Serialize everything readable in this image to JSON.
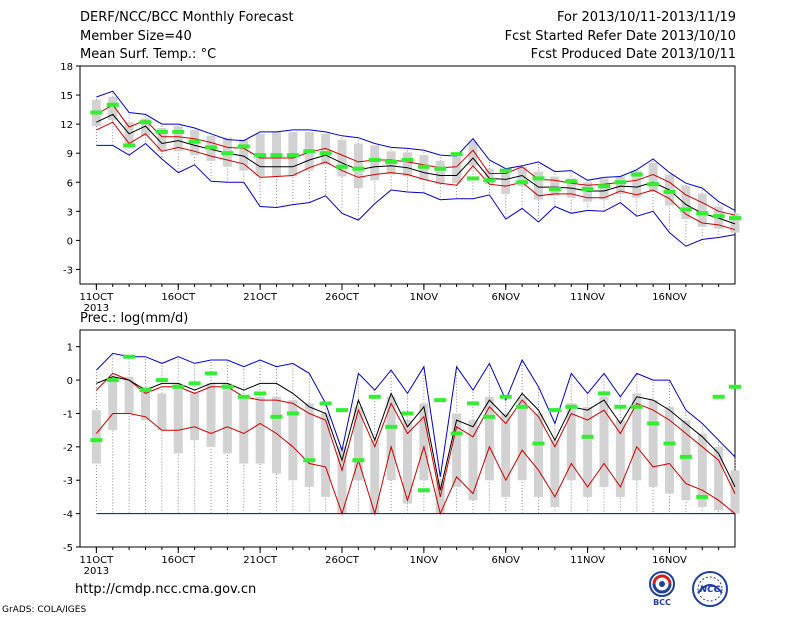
{
  "header": {
    "title": "DERF/NCC/BCC Monthly Forecast",
    "member_size": "Member Size=40",
    "variable": "Mean Surf. Temp.: °C",
    "period": "For 2013/10/11-2013/11/19",
    "fcst_started": "Fcst Started Refer Date 2013/10/10",
    "fcst_produced": "Fcst Produced Date 2013/10/11"
  },
  "footer": {
    "url": "http://cmdp.ncc.cma.gov.cn",
    "credit": "GrADS: COLA/IGES",
    "logo_bcc": "BCC",
    "logo_ncc": "NCC"
  },
  "colors": {
    "outer": "#0000cc",
    "inner": "#cc0000",
    "mean": "#000000",
    "obs": "#33ee33",
    "box": "#d2d2d2",
    "whisker": "#8c8c8c"
  },
  "chart_data": [
    {
      "type": "line",
      "title": "",
      "ylabel": "Mean Surf. Temp.: °C",
      "x_tick_labels": [
        "11OCT\n2013",
        "16OCT",
        "21OCT",
        "26OCT",
        "1NOV",
        "6NOV",
        "11NOV",
        "16NOV"
      ],
      "x_tick_days": [
        1,
        6,
        11,
        16,
        21,
        26,
        31,
        36
      ],
      "y_ticks": [
        -3,
        0,
        3,
        6,
        9,
        12,
        15,
        18
      ],
      "ylim": [
        -4.5,
        18
      ],
      "xlim": [
        0,
        40
      ],
      "days": [
        1,
        2,
        3,
        4,
        5,
        6,
        7,
        8,
        9,
        10,
        11,
        12,
        13,
        14,
        15,
        16,
        17,
        18,
        19,
        20,
        21,
        22,
        23,
        24,
        25,
        26,
        27,
        28,
        29,
        30,
        31,
        32,
        33,
        34,
        35,
        36,
        37,
        38,
        39,
        40
      ],
      "series": [
        {
          "name": "",
          "role": "upper-blue",
          "values": [
            14.8,
            15.4,
            13.2,
            13.0,
            12.0,
            12.0,
            11.6,
            11.0,
            10.4,
            10.3,
            11.2,
            11.2,
            11.4,
            11.4,
            11.2,
            10.8,
            10.6,
            10.0,
            9.6,
            9.5,
            9.3,
            8.8,
            8.7,
            10.5,
            8.3,
            7.4,
            7.7,
            8.1,
            7.1,
            7.2,
            6.2,
            6.5,
            6.6,
            7.3,
            8.4,
            7.0,
            5.9,
            5.4,
            4.0,
            3.1
          ]
        },
        {
          "name": "",
          "role": "upper-red",
          "values": [
            13.0,
            14.0,
            11.7,
            12.4,
            10.7,
            10.7,
            10.5,
            10.1,
            9.6,
            9.5,
            8.5,
            8.5,
            8.5,
            9.1,
            9.5,
            8.8,
            8.1,
            8.3,
            8.3,
            8.1,
            7.8,
            7.5,
            7.6,
            9.3,
            6.9,
            6.9,
            7.6,
            6.3,
            6.2,
            5.9,
            5.7,
            5.8,
            6.0,
            6.2,
            6.8,
            6.0,
            4.7,
            3.9,
            3.0,
            2.6
          ]
        },
        {
          "name": "",
          "role": "mean",
          "values": [
            12.2,
            13.0,
            11.0,
            11.8,
            10.0,
            10.3,
            9.8,
            9.4,
            9.0,
            8.7,
            7.6,
            7.6,
            7.6,
            8.3,
            8.8,
            8.0,
            7.3,
            7.6,
            7.7,
            7.5,
            7.0,
            6.7,
            6.7,
            8.5,
            6.4,
            6.3,
            6.7,
            5.5,
            5.5,
            5.4,
            5.1,
            5.1,
            5.6,
            5.5,
            6.0,
            5.2,
            3.7,
            2.8,
            2.3,
            1.7
          ]
        },
        {
          "name": "",
          "role": "lower-red",
          "values": [
            11.4,
            12.2,
            10.0,
            11.0,
            9.2,
            9.6,
            9.2,
            8.7,
            8.3,
            7.9,
            6.5,
            6.6,
            6.7,
            7.5,
            8.1,
            7.2,
            6.5,
            6.8,
            7.0,
            6.8,
            6.3,
            5.9,
            5.7,
            7.7,
            5.8,
            5.6,
            6.0,
            4.6,
            4.8,
            4.8,
            4.4,
            4.4,
            5.1,
            4.7,
            5.2,
            4.3,
            2.7,
            1.8,
            1.6,
            1.1
          ]
        },
        {
          "name": "",
          "role": "lower-blue",
          "values": [
            9.8,
            9.8,
            8.8,
            10.0,
            8.4,
            7.0,
            7.8,
            6.1,
            6.0,
            6.0,
            3.5,
            3.4,
            3.7,
            3.9,
            4.6,
            2.8,
            2.1,
            3.8,
            5.2,
            5.0,
            4.9,
            4.2,
            4.3,
            4.3,
            4.7,
            2.2,
            3.3,
            1.9,
            3.5,
            2.8,
            3.1,
            3.0,
            3.9,
            2.5,
            3.0,
            0.8,
            -0.6,
            0.1,
            0.3,
            0.6
          ]
        }
      ],
      "boxes": [
        [
          11.8,
          14.5
        ],
        [
          12.4,
          14.8
        ],
        [
          10.0,
          12.2
        ],
        [
          10.8,
          12.6
        ],
        [
          9.2,
          11.6
        ],
        [
          9.2,
          11.8
        ],
        [
          8.8,
          11.4
        ],
        [
          8.2,
          10.8
        ],
        [
          7.6,
          10.6
        ],
        [
          7.2,
          10.4
        ],
        [
          6.6,
          11.0
        ],
        [
          6.6,
          11.2
        ],
        [
          6.6,
          11.2
        ],
        [
          7.2,
          11.2
        ],
        [
          7.8,
          11.0
        ],
        [
          6.6,
          10.4
        ],
        [
          5.4,
          10.0
        ],
        [
          6.2,
          9.8
        ],
        [
          6.8,
          9.2
        ],
        [
          6.6,
          9.1
        ],
        [
          6.2,
          8.8
        ],
        [
          5.8,
          8.2
        ],
        [
          5.9,
          8.6
        ],
        [
          7.7,
          10.2
        ],
        [
          5.8,
          7.4
        ],
        [
          4.8,
          7.0
        ],
        [
          5.6,
          7.6
        ],
        [
          4.2,
          7.1
        ],
        [
          4.6,
          6.6
        ],
        [
          4.4,
          6.4
        ],
        [
          4.0,
          6.0
        ],
        [
          4.2,
          6.4
        ],
        [
          4.8,
          6.6
        ],
        [
          4.4,
          7.2
        ],
        [
          5.0,
          8.0
        ],
        [
          3.6,
          6.8
        ],
        [
          2.2,
          5.6
        ],
        [
          1.4,
          4.8
        ],
        [
          1.2,
          3.5
        ],
        [
          0.8,
          2.8
        ]
      ],
      "observed": [
        13.2,
        14.0,
        9.8,
        12.2,
        11.2,
        11.2,
        10.2,
        9.6,
        9.0,
        9.7,
        8.8,
        8.8,
        8.8,
        9.2,
        9.0,
        7.6,
        7.4,
        8.3,
        8.1,
        8.3,
        7.6,
        7.4,
        8.9,
        6.4,
        6.2,
        7.2,
        6.0,
        6.4,
        5.3,
        6.1,
        5.3,
        5.6,
        6.0,
        6.8,
        5.8,
        5.0,
        3.2,
        2.8,
        2.5,
        2.3
      ]
    },
    {
      "type": "line",
      "title": "",
      "ylabel": "Prec.: log(mm/d)",
      "x_tick_labels": [
        "11OCT\n2013",
        "16OCT",
        "21OCT",
        "26OCT",
        "1NOV",
        "6NOV",
        "11NOV",
        "16NOV"
      ],
      "x_tick_days": [
        1,
        6,
        11,
        16,
        21,
        26,
        31,
        36
      ],
      "y_ticks": [
        -5,
        -4,
        -3,
        -2,
        -1,
        0,
        1
      ],
      "ylim": [
        -5,
        1.5
      ],
      "xlim": [
        0,
        40
      ],
      "days": [
        1,
        2,
        3,
        4,
        5,
        6,
        7,
        8,
        9,
        10,
        11,
        12,
        13,
        14,
        15,
        16,
        17,
        18,
        19,
        20,
        21,
        22,
        23,
        24,
        25,
        26,
        27,
        28,
        29,
        30,
        31,
        32,
        33,
        34,
        35,
        36,
        37,
        38,
        39,
        40
      ],
      "series": [
        {
          "name": "",
          "role": "upper-blue",
          "values": [
            0.3,
            0.8,
            0.7,
            0.7,
            0.5,
            0.7,
            0.5,
            0.6,
            0.6,
            0.4,
            0.6,
            0.4,
            0.5,
            0.2,
            -0.7,
            -2.1,
            0.2,
            -0.3,
            0.3,
            -0.4,
            0.4,
            -2.9,
            0.4,
            -0.3,
            0.5,
            -0.6,
            0.6,
            -0.2,
            -1.3,
            0.2,
            -0.4,
            0.2,
            -0.5,
            0.2,
            0.0,
            0.0,
            -0.9,
            -1.3,
            -1.8,
            -2.3
          ]
        },
        {
          "name": "",
          "role": "upper-red",
          "values": [
            -0.3,
            0.2,
            0.0,
            -0.4,
            -0.2,
            -0.2,
            -0.4,
            -0.2,
            -0.2,
            -0.5,
            -0.6,
            -0.6,
            -0.7,
            -1.0,
            -1.2,
            -2.7,
            -0.9,
            -2.0,
            -0.7,
            -1.6,
            -1.1,
            -3.5,
            -1.4,
            -1.7,
            -0.8,
            -1.3,
            -0.6,
            -1.1,
            -2.0,
            -1.0,
            -1.2,
            -0.9,
            -1.6,
            -0.7,
            -0.9,
            -1.2,
            -1.6,
            -2.0,
            -2.4,
            -3.4
          ]
        },
        {
          "name": "",
          "role": "mean",
          "values": [
            -0.1,
            0.1,
            0.0,
            -0.3,
            -0.1,
            -0.1,
            -0.3,
            -0.1,
            -0.1,
            -0.3,
            -0.1,
            -0.1,
            -0.4,
            -0.8,
            -1.0,
            -2.4,
            -0.6,
            -1.8,
            -0.4,
            -1.4,
            -0.8,
            -3.3,
            -1.2,
            -1.4,
            -0.6,
            -1.1,
            -0.4,
            -0.9,
            -1.8,
            -0.8,
            -0.9,
            -0.6,
            -1.3,
            -0.5,
            -0.6,
            -0.9,
            -1.3,
            -1.7,
            -2.2,
            -3.2
          ]
        },
        {
          "name": "",
          "role": "lower-red",
          "values": [
            -1.6,
            -1.0,
            -1.0,
            -1.1,
            -1.5,
            -1.5,
            -1.4,
            -1.6,
            -1.4,
            -1.6,
            -1.3,
            -1.6,
            -2.0,
            -2.5,
            -2.6,
            -4.0,
            -2.4,
            -4.0,
            -2.0,
            -3.6,
            -2.0,
            -4.0,
            -2.9,
            -3.4,
            -2.0,
            -3.0,
            -2.1,
            -2.7,
            -3.5,
            -2.5,
            -3.2,
            -2.5,
            -3.2,
            -2.0,
            -2.6,
            -2.5,
            -3.1,
            -3.3,
            -3.6,
            -4.0
          ]
        },
        {
          "name": "",
          "role": "lower-blue",
          "values": [
            -4.0,
            -4.0,
            -4.0,
            -4.0,
            -4.0,
            -4.0,
            -4.0,
            -4.0,
            -4.0,
            -4.0,
            -4.0,
            -4.0,
            -4.0,
            -4.0,
            -4.0,
            -4.0,
            -4.0,
            -4.0,
            -4.0,
            -4.0,
            -4.0,
            -4.0,
            -4.0,
            -4.0,
            -4.0,
            -4.0,
            -4.0,
            -4.0,
            -4.0,
            -4.0,
            -4.0,
            -4.0,
            -4.0,
            -4.0,
            -4.0,
            -4.0,
            -4.0,
            -4.0,
            -4.0,
            -4.0
          ]
        }
      ],
      "boxes": [
        [
          -2.5,
          -0.9
        ],
        [
          -1.5,
          0.1
        ],
        [
          -1.0,
          0.1
        ],
        [
          -1.2,
          -0.2
        ],
        [
          -1.5,
          -0.4
        ],
        [
          -2.2,
          -0.1
        ],
        [
          -1.8,
          -0.4
        ],
        [
          -2.0,
          -0.1
        ],
        [
          -2.2,
          -0.1
        ],
        [
          -2.5,
          -0.5
        ],
        [
          -2.5,
          -0.5
        ],
        [
          -2.8,
          -0.5
        ],
        [
          -3.0,
          -0.6
        ],
        [
          -3.2,
          -0.7
        ],
        [
          -3.5,
          -1.0
        ],
        [
          -4.0,
          -2.0
        ],
        [
          -3.0,
          -0.8
        ],
        [
          -4.0,
          -1.8
        ],
        [
          -3.0,
          -0.5
        ],
        [
          -3.7,
          -1.2
        ],
        [
          -3.0,
          -0.7
        ],
        [
          -4.0,
          -3.0
        ],
        [
          -3.2,
          -1.0
        ],
        [
          -3.6,
          -1.2
        ],
        [
          -3.0,
          -0.5
        ],
        [
          -3.5,
          -1.0
        ],
        [
          -3.0,
          -0.5
        ],
        [
          -3.5,
          -1.0
        ],
        [
          -3.8,
          -1.8
        ],
        [
          -3.0,
          -0.7
        ],
        [
          -3.5,
          -0.8
        ],
        [
          -3.2,
          -0.5
        ],
        [
          -3.5,
          -1.2
        ],
        [
          -3.0,
          -0.4
        ],
        [
          -3.2,
          -0.6
        ],
        [
          -3.4,
          -0.8
        ],
        [
          -3.6,
          -1.2
        ],
        [
          -3.8,
          -1.6
        ],
        [
          -3.9,
          -2.0
        ],
        [
          -4.0,
          -2.7
        ]
      ],
      "observed": [
        -1.8,
        -0.0,
        0.7,
        -0.3,
        -0.0,
        -0.2,
        -0.1,
        0.2,
        -0.2,
        -0.5,
        -0.4,
        -1.1,
        -1.0,
        -2.4,
        -0.7,
        -0.9,
        -2.4,
        -0.5,
        -1.4,
        -1.0,
        -3.3,
        -0.6,
        -1.6,
        -0.7,
        -1.1,
        -0.5,
        -0.8,
        -1.9,
        -0.9,
        -0.8,
        -1.7,
        -0.4,
        -0.8,
        -0.8,
        -1.3,
        -1.9,
        -2.3,
        -3.5,
        -0.5,
        -0.2
      ]
    }
  ]
}
